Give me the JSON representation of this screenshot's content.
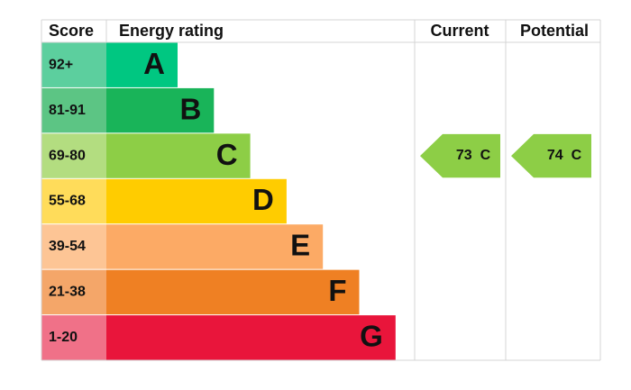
{
  "header": {
    "score": "Score",
    "rating": "Energy rating",
    "current": "Current",
    "potential": "Potential"
  },
  "bands": [
    {
      "score": "92+",
      "rating": "A",
      "color": "#00c781",
      "score_color": "#5ccf9e"
    },
    {
      "score": "81-91",
      "rating": "B",
      "color": "#19b459",
      "score_color": "#5cc584"
    },
    {
      "score": "69-80",
      "rating": "C",
      "color": "#8dce46",
      "score_color": "#b3dd80"
    },
    {
      "score": "55-68",
      "rating": "D",
      "color": "#ffcc00",
      "score_color": "#ffdc5a"
    },
    {
      "score": "39-54",
      "rating": "E",
      "color": "#fcaa65",
      "score_color": "#fdc595"
    },
    {
      "score": "21-38",
      "rating": "F",
      "color": "#ef8023",
      "score_color": "#f4a669"
    },
    {
      "score": "1-20",
      "rating": "G",
      "color": "#e9153b",
      "score_color": "#f07188"
    }
  ],
  "current": {
    "score": 73,
    "rating": "C"
  },
  "potential": {
    "score": 74,
    "rating": "C"
  }
}
